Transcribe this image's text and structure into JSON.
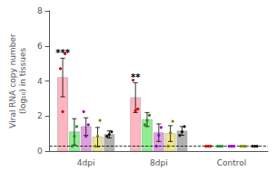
{
  "chart_data": {
    "type": "bar",
    "ylabel": "Viral RNA copy number\n(log₁₀) in tissues",
    "categories": [
      "4dpi",
      "8dpi",
      "Control"
    ],
    "ylim": [
      0,
      8
    ],
    "yticks": [
      0,
      2,
      4,
      6,
      8
    ],
    "grid": false,
    "series": [
      {
        "color": "#FFB6C1",
        "values": [
          4.2,
          3.05,
          null
        ],
        "errors": [
          1.1,
          0.85,
          null
        ],
        "dots": {
          "color": "#CC0000",
          "values": [
            [
              4.7,
              2.25,
              5.55
            ],
            [
              4.05,
              2.3,
              2.4
            ],
            [
              0.28,
              0.28,
              0.28
            ]
          ]
        }
      },
      {
        "color": "#90EE90",
        "values": [
          1.1,
          1.8,
          null
        ],
        "errors": [
          0.75,
          0.4,
          null
        ],
        "dots": {
          "color": "#228B22",
          "values": [
            [
              0.28,
              0.85,
              1.4
            ],
            [
              1.5,
              1.75,
              2.05
            ],
            [
              0.28,
              0.28,
              0.28
            ]
          ]
        }
      },
      {
        "color": "#DDA0DD",
        "values": [
          1.4,
          1.05,
          null
        ],
        "errors": [
          0.5,
          0.5,
          null
        ],
        "dots": {
          "color": "#9400D3",
          "values": [
            [
              2.25,
              0.85,
              1.5
            ],
            [
              0.28,
              0.9,
              1.35
            ],
            [
              0.28,
              0.28,
              0.28
            ]
          ]
        }
      },
      {
        "color": "#F0E68C",
        "values": [
          0.8,
          1.0,
          null
        ],
        "errors": [
          0.55,
          0.45,
          null
        ],
        "dots": {
          "color": "#808000",
          "values": [
            [
              0.28,
              0.85,
              1.75
            ],
            [
              0.28,
              1.05,
              1.7
            ],
            [
              0.28,
              0.28,
              0.28
            ]
          ]
        }
      },
      {
        "color": "#B0B0B0",
        "values": [
          0.95,
          1.15,
          null
        ],
        "errors": [
          0.2,
          0.25,
          null
        ],
        "dots": {
          "color": "#111111",
          "values": [
            [
              0.85,
              0.95,
              1.1
            ],
            [
              0.9,
              1.1,
              1.4
            ],
            [
              0.28,
              0.28,
              0.28
            ]
          ]
        }
      }
    ],
    "annotations": [
      {
        "category": "4dpi",
        "text": "***"
      },
      {
        "category": "8dpi",
        "text": "**"
      }
    ],
    "hline": {
      "y": 0.3,
      "line_style": "dashed"
    }
  }
}
